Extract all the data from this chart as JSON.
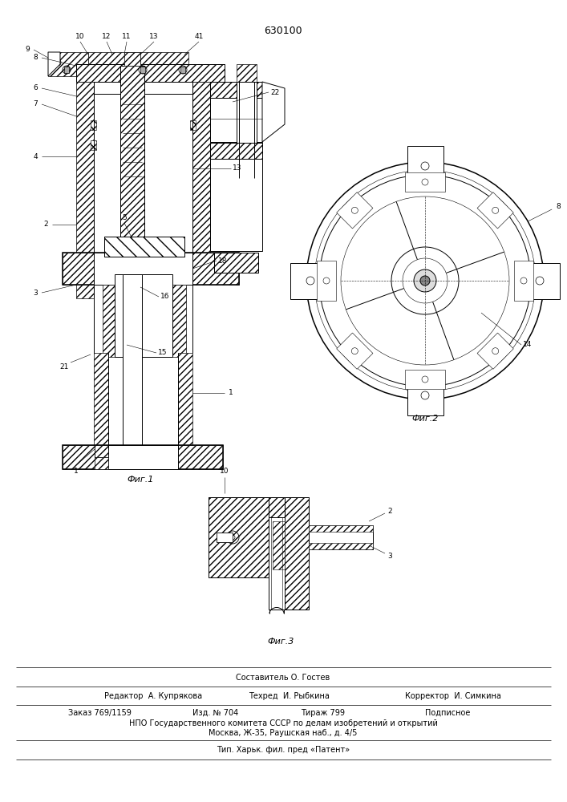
{
  "patent_number": "630100",
  "background_color": "#ffffff",
  "footer_lines": [
    "Составитель О. Гостев",
    "Редактор  А. Купрякова          Техред  И. Рыбкина          Корректор  И. Симкина",
    "Заказ 769/1159          Изд. № 704          Тираж 799          Подписное",
    "НПО Государственного комитета СССР по делам изобретений и открытий",
    "Москва, Ж-35, Раушская наб., д. 4/5",
    "Тип. Харьк. фил. пред «Патент»"
  ]
}
